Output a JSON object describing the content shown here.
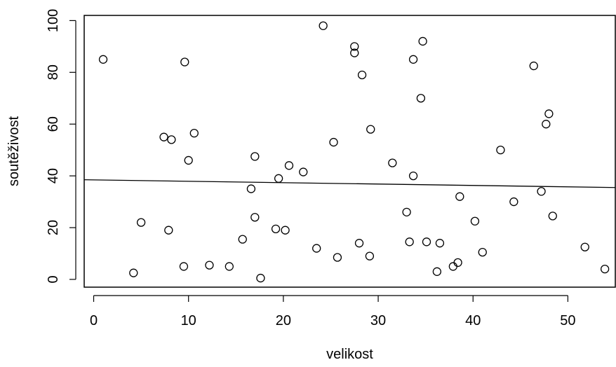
{
  "chart_data": {
    "type": "scatter",
    "title": "",
    "xlabel": "velikost",
    "ylabel": "soutěživost",
    "xlim": [
      -1,
      55
    ],
    "ylim": [
      -3,
      102
    ],
    "xticks": [
      "0",
      "10",
      "20",
      "30",
      "40",
      "50"
    ],
    "yticks": [
      "0",
      "20",
      "40",
      "60",
      "80",
      "100"
    ],
    "grid": false,
    "legend": "none",
    "points": [
      {
        "x": 1.0,
        "y": 85
      },
      {
        "x": 4.2,
        "y": 2.5
      },
      {
        "x": 5.0,
        "y": 22
      },
      {
        "x": 7.4,
        "y": 55
      },
      {
        "x": 7.9,
        "y": 19
      },
      {
        "x": 8.2,
        "y": 54
      },
      {
        "x": 9.5,
        "y": 5
      },
      {
        "x": 9.6,
        "y": 84
      },
      {
        "x": 10.0,
        "y": 46
      },
      {
        "x": 10.6,
        "y": 56.5
      },
      {
        "x": 12.2,
        "y": 5.5
      },
      {
        "x": 14.3,
        "y": 5
      },
      {
        "x": 15.7,
        "y": 15.5
      },
      {
        "x": 16.6,
        "y": 35
      },
      {
        "x": 17.0,
        "y": 47.5
      },
      {
        "x": 17.0,
        "y": 24
      },
      {
        "x": 17.6,
        "y": 0.5
      },
      {
        "x": 19.2,
        "y": 19.5
      },
      {
        "x": 19.5,
        "y": 39
      },
      {
        "x": 20.2,
        "y": 19
      },
      {
        "x": 20.6,
        "y": 44
      },
      {
        "x": 22.1,
        "y": 41.5
      },
      {
        "x": 23.5,
        "y": 12
      },
      {
        "x": 24.2,
        "y": 98
      },
      {
        "x": 25.3,
        "y": 53
      },
      {
        "x": 25.7,
        "y": 8.5
      },
      {
        "x": 27.5,
        "y": 90
      },
      {
        "x": 27.5,
        "y": 87.5
      },
      {
        "x": 28.0,
        "y": 14
      },
      {
        "x": 28.3,
        "y": 79
      },
      {
        "x": 29.1,
        "y": 9
      },
      {
        "x": 29.2,
        "y": 58
      },
      {
        "x": 31.5,
        "y": 45
      },
      {
        "x": 33.0,
        "y": 26
      },
      {
        "x": 33.3,
        "y": 14.5
      },
      {
        "x": 33.7,
        "y": 85
      },
      {
        "x": 33.7,
        "y": 40
      },
      {
        "x": 34.5,
        "y": 70
      },
      {
        "x": 34.7,
        "y": 92
      },
      {
        "x": 35.1,
        "y": 14.5
      },
      {
        "x": 36.2,
        "y": 3
      },
      {
        "x": 36.5,
        "y": 14
      },
      {
        "x": 37.9,
        "y": 5
      },
      {
        "x": 38.4,
        "y": 6.5
      },
      {
        "x": 38.6,
        "y": 32
      },
      {
        "x": 40.2,
        "y": 22.5
      },
      {
        "x": 41.0,
        "y": 10.5
      },
      {
        "x": 42.9,
        "y": 50
      },
      {
        "x": 44.3,
        "y": 30
      },
      {
        "x": 46.4,
        "y": 82.5
      },
      {
        "x": 47.2,
        "y": 34
      },
      {
        "x": 47.7,
        "y": 60
      },
      {
        "x": 48.0,
        "y": 64
      },
      {
        "x": 48.4,
        "y": 24.5
      },
      {
        "x": 51.8,
        "y": 12.5
      },
      {
        "x": 53.9,
        "y": 4
      }
    ],
    "regression_line": {
      "x": [
        -1,
        55
      ],
      "y": [
        38.5,
        35.5
      ]
    }
  }
}
